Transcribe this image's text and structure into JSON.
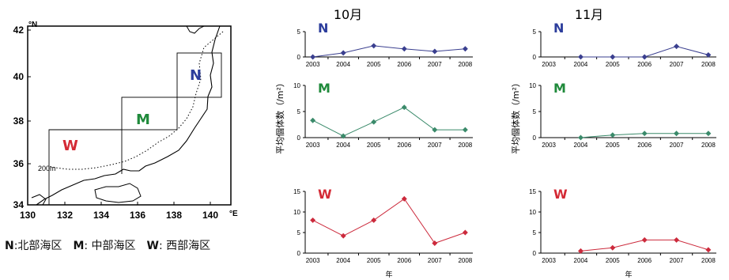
{
  "colors": {
    "N": "#3a3f8f",
    "M": "#3a8a6a",
    "W": "#cc2a3c",
    "N_label": "#2c3d9c",
    "M_label": "#1f8a3b",
    "W_label": "#d42a35"
  },
  "map": {
    "x_ticks": [
      "130",
      "132",
      "134",
      "136",
      "138",
      "140"
    ],
    "y_ticks": [
      "34",
      "36",
      "38",
      "40",
      "42"
    ],
    "north_label": "°N",
    "east_label": "°E",
    "depth_label": "200m",
    "region_labels": [
      "N",
      "M",
      "W"
    ]
  },
  "legend": {
    "n_key": "N",
    "n_text": ":北部海区",
    "m_key": "M",
    "m_text": ": 中部海区",
    "w_key": "W",
    "w_text": ": 西部海区"
  },
  "chart_data": [
    {
      "type": "line",
      "title": "10月",
      "panel": "N",
      "region_label": "N",
      "x": [
        "2003",
        "2004",
        "2005",
        "2006",
        "2007",
        "2008"
      ],
      "values": [
        0,
        0.8,
        2.2,
        1.6,
        1.1,
        1.6
      ],
      "ylim": [
        0,
        5
      ],
      "yticks": [
        "0",
        "5"
      ]
    },
    {
      "type": "line",
      "panel": "M",
      "region_label": "M",
      "x": [
        "2003",
        "2004",
        "2005",
        "2006",
        "2007",
        "2008"
      ],
      "values": [
        3.3,
        0.3,
        3.0,
        5.8,
        1.5,
        1.5
      ],
      "ylim": [
        0,
        10
      ],
      "yticks": [
        "0",
        "5",
        "10"
      ],
      "ylabel": "平均個体数（/m²）"
    },
    {
      "type": "line",
      "panel": "W",
      "region_label": "W",
      "x": [
        "2003",
        "2004",
        "2005",
        "2006",
        "2007",
        "2008"
      ],
      "values": [
        8.0,
        4.2,
        8.0,
        13.2,
        2.4,
        5.0
      ],
      "ylim": [
        0,
        15
      ],
      "yticks": [
        "0",
        "5",
        "10",
        "15"
      ],
      "xlabel": "年"
    },
    {
      "type": "line",
      "title": "11月",
      "panel": "N",
      "region_label": "N",
      "x": [
        "2003",
        "2004",
        "2005",
        "2006",
        "2007",
        "2008"
      ],
      "values": [
        null,
        0,
        0,
        0,
        2.1,
        0.4
      ],
      "ylim": [
        0,
        5
      ],
      "yticks": [
        "0",
        "5"
      ]
    },
    {
      "type": "line",
      "panel": "M",
      "region_label": "M",
      "x": [
        "2003",
        "2004",
        "2005",
        "2006",
        "2007",
        "2008"
      ],
      "values": [
        null,
        0,
        0.5,
        0.8,
        0.8,
        0.8
      ],
      "ylim": [
        0,
        10
      ],
      "yticks": [
        "0",
        "5",
        "10"
      ],
      "ylabel": "平均個体数（/m²）"
    },
    {
      "type": "line",
      "panel": "W",
      "region_label": "W",
      "x": [
        "2003",
        "2004",
        "2005",
        "2006",
        "2007",
        "2008"
      ],
      "values": [
        null,
        0.5,
        1.3,
        3.2,
        3.2,
        0.8
      ],
      "ylim": [
        0,
        15
      ],
      "yticks": [
        "0",
        "5",
        "10",
        "15"
      ],
      "xlabel": "年"
    }
  ]
}
